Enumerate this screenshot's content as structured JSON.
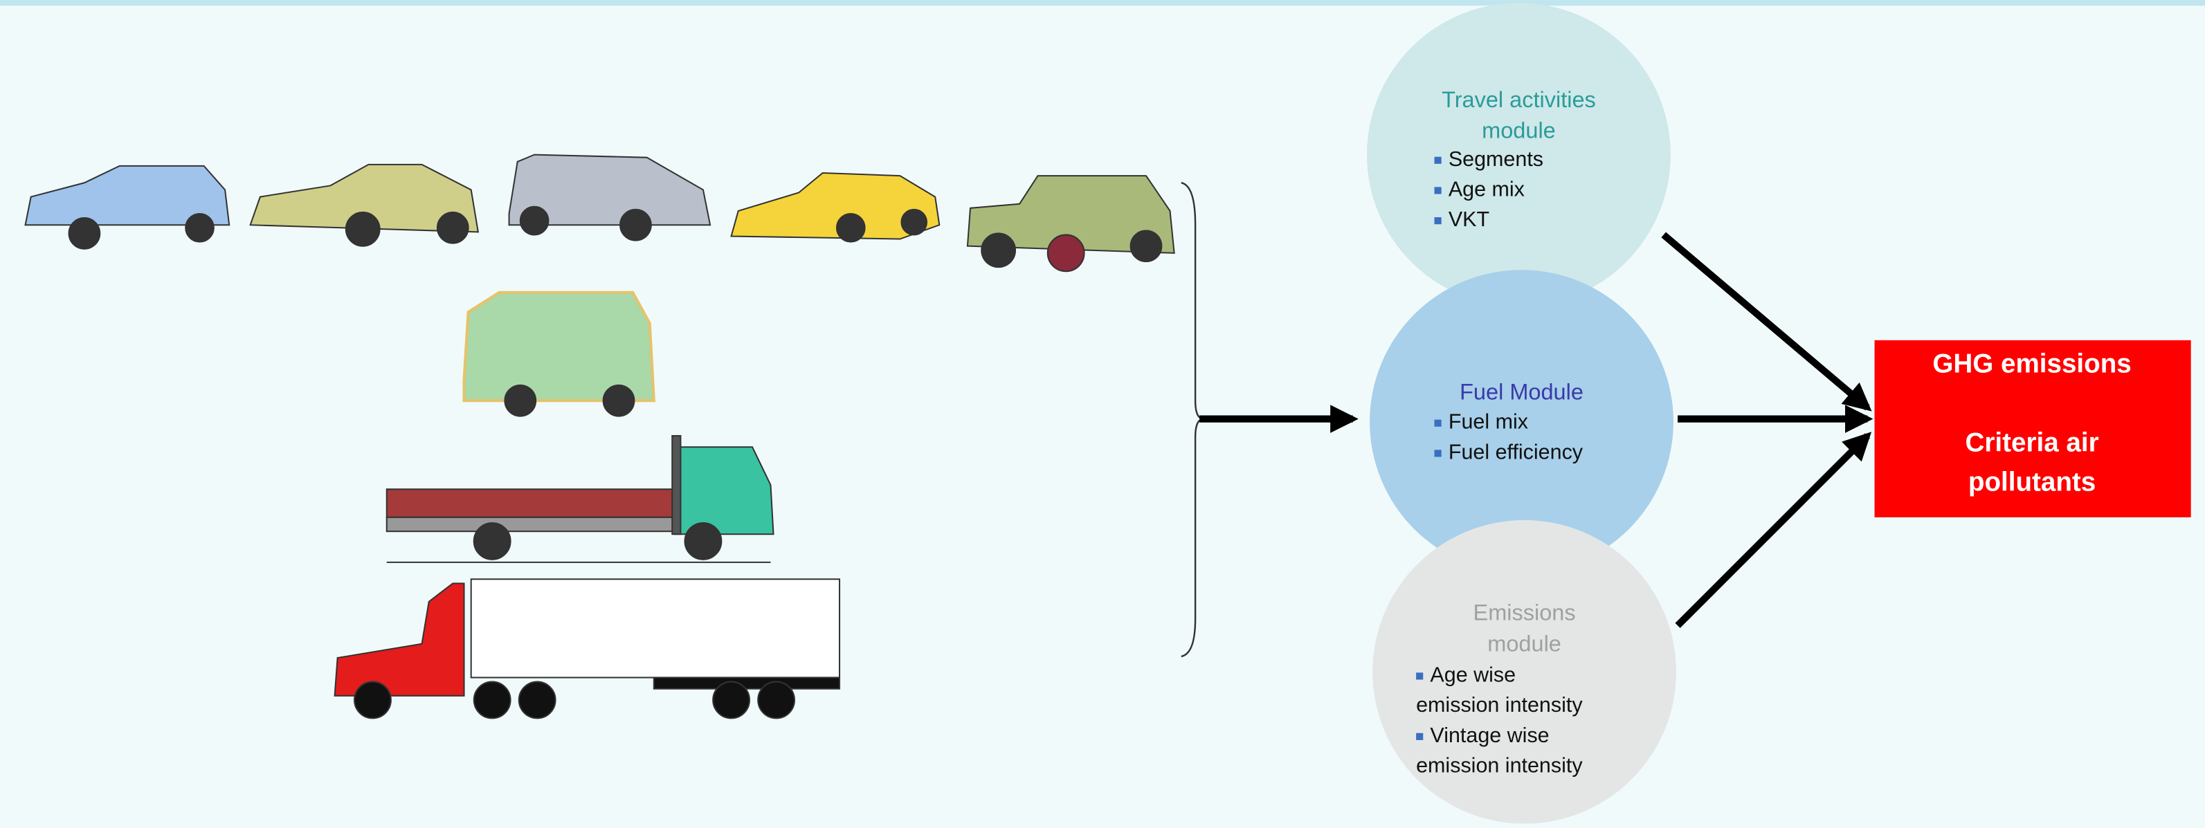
{
  "modules": [
    {
      "title_lines": [
        "Travel activities",
        "module"
      ],
      "items": [
        {
          "lines": [
            "Segments"
          ]
        },
        {
          "lines": [
            "Age mix"
          ]
        },
        {
          "lines": [
            "VKT"
          ]
        }
      ]
    },
    {
      "title_lines": [
        "Fuel Module"
      ],
      "items": [
        {
          "lines": [
            "Fuel mix"
          ]
        },
        {
          "lines": [
            "Fuel efficiency"
          ]
        }
      ]
    },
    {
      "title_lines": [
        "Emissions",
        "module"
      ],
      "items": [
        {
          "lines": [
            "Age wise",
            "emission intensity"
          ]
        },
        {
          "lines": [
            "Vintage wise",
            "emission intensity"
          ]
        }
      ]
    }
  ],
  "output": {
    "lines": [
      "GHG emissions",
      "Criteria air",
      "pollutants"
    ]
  }
}
